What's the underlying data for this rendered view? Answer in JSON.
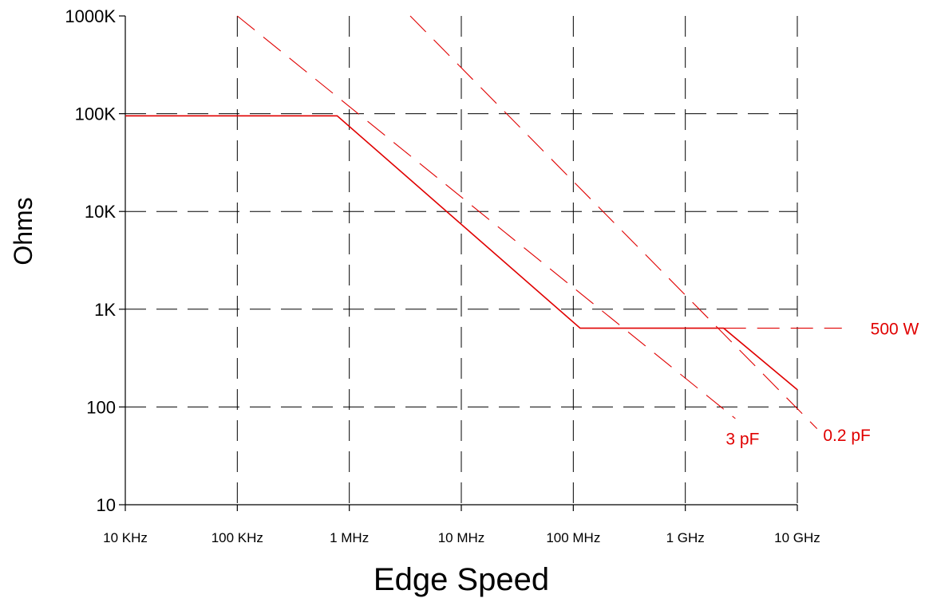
{
  "chart_data": {
    "type": "line",
    "xlabel": "Edge Speed",
    "ylabel": "Ohms",
    "x_scale": "log",
    "y_scale": "log",
    "xlim": [
      10000,
      10000000000
    ],
    "ylim": [
      10,
      1000000
    ],
    "grid": true,
    "x_ticks": [
      {
        "value": 10000,
        "label": "10 KHz"
      },
      {
        "value": 100000,
        "label": "100 KHz"
      },
      {
        "value": 1000000,
        "label": "1 MHz"
      },
      {
        "value": 10000000,
        "label": "10 MHz"
      },
      {
        "value": 100000000,
        "label": "100 MHz"
      },
      {
        "value": 1000000000,
        "label": "1 GHz"
      },
      {
        "value": 10000000000,
        "label": "10 GHz"
      }
    ],
    "y_ticks": [
      {
        "value": 10,
        "label": "10"
      },
      {
        "value": 100,
        "label": "100"
      },
      {
        "value": 1000,
        "label": "1K"
      },
      {
        "value": 10000,
        "label": "10K"
      },
      {
        "value": 100000,
        "label": "100K"
      },
      {
        "value": 1000000,
        "label": "1000K"
      }
    ],
    "color": "#e00000",
    "series": [
      {
        "style": "solid",
        "x": [
          10000,
          780000,
          115000000,
          2200000000,
          10000000000
        ],
        "y": [
          95000,
          95000,
          640,
          640,
          150
        ]
      },
      {
        "name": "3 pF",
        "style": "dashed",
        "x": [
          100000,
          2800000000
        ],
        "y": [
          1000000,
          76
        ]
      },
      {
        "name": "0.2 pF",
        "style": "dashed",
        "x": [
          3500000,
          15000000000
        ],
        "y": [
          1000000,
          60
        ]
      },
      {
        "name": "500 W",
        "style": "dashed",
        "x": [
          2200000000,
          25000000000
        ],
        "y": [
          640,
          640
        ]
      }
    ],
    "annotations": [
      {
        "text": "500 W",
        "x": 45000000000,
        "y": 640
      },
      {
        "text": "3 pF",
        "x": 2300000000,
        "y": 48
      },
      {
        "text": "0.2 pF",
        "x": 17000000000,
        "y": 52
      }
    ]
  }
}
